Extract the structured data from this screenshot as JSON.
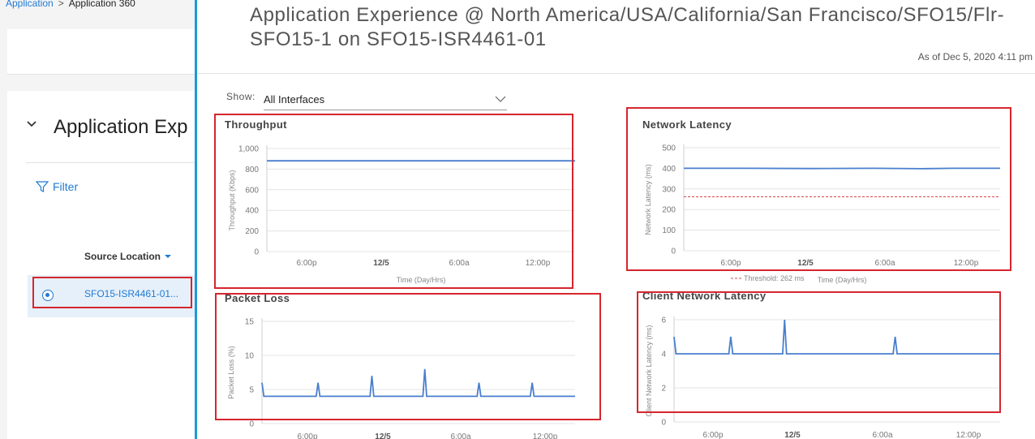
{
  "breadcrumb": {
    "parent": "Application",
    "current": "Application 360"
  },
  "left": {
    "section_title": "Application Exp",
    "filter_label": "Filter",
    "column_header": "Source Location",
    "row_label": "SFO15-ISR4461-01..."
  },
  "panel": {
    "title_line1": "Application Experience @ North America/USA/California/San Francisco/SFO15/Flr-",
    "title_line2": "SFO15-1 on SFO15-ISR4461-01",
    "as_of": "As of Dec 5, 2020 4:11 pm",
    "show_label": "Show:",
    "show_value": "All Interfaces"
  },
  "colors": {
    "series": "#4a7fcf",
    "threshold": "#d9474f",
    "highlight": "#d6262e",
    "accent": "#1f7ad2"
  },
  "chart_data": [
    {
      "type": "line",
      "title": "Throughput",
      "ylabel": "Throughput (Kbps)",
      "xlabel": "Time (Day/Hrs)",
      "ylim": [
        0,
        1000
      ],
      "yticks": [
        "0",
        "200",
        "400",
        "600",
        "800",
        "1,000"
      ],
      "xticks": [
        "6:00p",
        "12/5",
        "6:00a",
        "12:00p"
      ],
      "series": [
        {
          "points": [
            [
              0,
              880
            ],
            [
              1,
              880
            ]
          ]
        }
      ]
    },
    {
      "type": "line",
      "title": "Network Latency",
      "ylabel": "Network Latency (ms)",
      "xlabel": "Time (Day/Hrs)",
      "ylim": [
        0,
        500
      ],
      "yticks": [
        "0",
        "100",
        "200",
        "300",
        "400",
        "500"
      ],
      "xticks": [
        "6:00p",
        "12/5",
        "6:00a",
        "12:00p"
      ],
      "threshold": {
        "value": 262,
        "label": "Threshold: 262 ms"
      },
      "series": [
        {
          "points": [
            [
              0,
              400
            ],
            [
              0.2,
              400
            ],
            [
              0.4,
              399
            ],
            [
              0.6,
              400
            ],
            [
              0.75,
              398
            ],
            [
              0.85,
              400
            ],
            [
              1,
              400
            ]
          ]
        }
      ]
    },
    {
      "type": "line",
      "title": "Packet Loss",
      "ylabel": "Packet Loss (%)",
      "xlabel": "Time (Day/Hrs)",
      "ylim": [
        0,
        15
      ],
      "yticks": [
        "0",
        "5",
        "10",
        "15"
      ],
      "xticks": [
        "6:00p",
        "12/5",
        "6:00a",
        "12:00p"
      ],
      "series": [
        {
          "points": [
            [
              0,
              6
            ],
            [
              0.006,
              4
            ],
            [
              0.173,
              4
            ],
            [
              0.179,
              6
            ],
            [
              0.185,
              4
            ],
            [
              0.345,
              4
            ],
            [
              0.351,
              7
            ],
            [
              0.357,
              4
            ],
            [
              0.514,
              4
            ],
            [
              0.52,
              8
            ],
            [
              0.526,
              4
            ],
            [
              0.687,
              4
            ],
            [
              0.693,
              6
            ],
            [
              0.699,
              4
            ],
            [
              0.857,
              4
            ],
            [
              0.863,
              6
            ],
            [
              0.869,
              4
            ],
            [
              1,
              4
            ]
          ]
        }
      ]
    },
    {
      "type": "line",
      "title": "Client Network Latency",
      "ylabel": "Client Network Latency (ms)",
      "xlabel": "",
      "ylim": [
        0,
        6
      ],
      "yticks": [
        "0",
        "2",
        "4",
        "6"
      ],
      "xticks": [
        "6:00p",
        "12/5",
        "6:00a",
        "12:00p"
      ],
      "series": [
        {
          "points": [
            [
              0,
              5
            ],
            [
              0.006,
              4
            ],
            [
              0.168,
              4
            ],
            [
              0.174,
              5
            ],
            [
              0.18,
              4
            ],
            [
              0.333,
              4
            ],
            [
              0.339,
              6
            ],
            [
              0.345,
              4
            ],
            [
              0.672,
              4
            ],
            [
              0.678,
              5
            ],
            [
              0.684,
              4
            ],
            [
              1,
              4
            ]
          ]
        }
      ]
    }
  ]
}
